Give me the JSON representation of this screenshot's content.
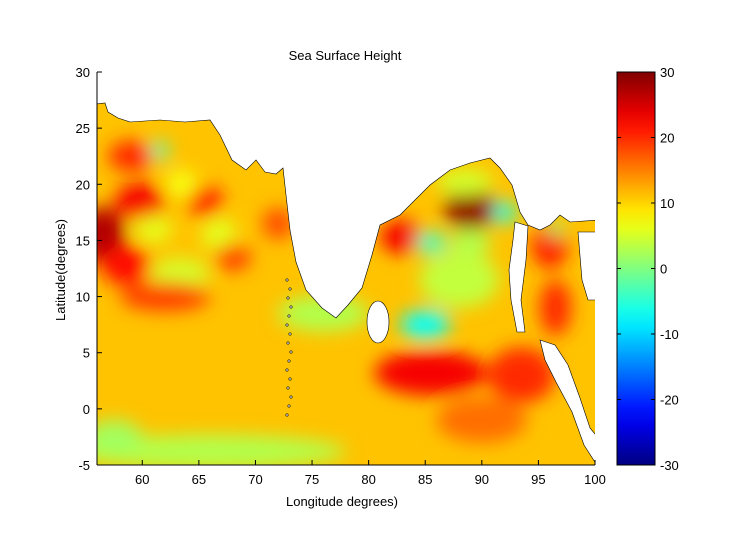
{
  "chart_data": {
    "type": "heatmap",
    "title": "Sea Surface Height",
    "xlabel": "Longitude degrees)",
    "ylabel": "Latitude(degrees)",
    "xlim": [
      56,
      100
    ],
    "ylim": [
      -5,
      30
    ],
    "xticks": [
      "60",
      "65",
      "70",
      "75",
      "80",
      "85",
      "90",
      "95",
      "100"
    ],
    "xtick_values": [
      60,
      65,
      70,
      75,
      80,
      85,
      90,
      95,
      100
    ],
    "yticks": [
      "30",
      "25",
      "20",
      "15",
      "10",
      "5",
      "0",
      "-5"
    ],
    "ytick_values": [
      30,
      25,
      20,
      15,
      10,
      5,
      0,
      -5
    ],
    "colorbar": {
      "range": [
        -30,
        30
      ],
      "ticks": [
        "30",
        "20",
        "10",
        "0",
        "-10",
        "-20",
        "-30"
      ],
      "tick_values": [
        30,
        20,
        10,
        0,
        -10,
        -20,
        -30
      ],
      "colormap": "jet"
    },
    "background_value": 11,
    "features": [
      {
        "lon": 56.5,
        "lat": 15.5,
        "value": 27,
        "rlon": 2.0,
        "rlat": 2.5
      },
      {
        "lon": 59.8,
        "lat": 18.5,
        "value": 23,
        "rlon": 2.2,
        "rlat": 1.6
      },
      {
        "lon": 61.5,
        "lat": 23.0,
        "value": -4,
        "rlon": 0.8,
        "rlat": 0.8
      },
      {
        "lon": 58.5,
        "lat": 12.8,
        "value": 22,
        "rlon": 2.2,
        "rlat": 1.8
      },
      {
        "lon": 59.0,
        "lat": 22.5,
        "value": 20,
        "rlon": 2.0,
        "rlat": 1.4
      },
      {
        "lon": 61.0,
        "lat": 16.0,
        "value": 6,
        "rlon": 1.6,
        "rlat": 1.2
      },
      {
        "lon": 63.3,
        "lat": 12.0,
        "value": 5,
        "rlon": 2.6,
        "rlat": 1.4
      },
      {
        "lon": 65.5,
        "lat": 18.5,
        "value": 21,
        "rlon": 1.6,
        "rlat": 1.4
      },
      {
        "lon": 62.0,
        "lat": 10.0,
        "value": 19,
        "rlon": 4.0,
        "rlat": 1.3
      },
      {
        "lon": 66.8,
        "lat": 15.5,
        "value": 6,
        "rlon": 1.5,
        "rlat": 1.6
      },
      {
        "lon": 63.5,
        "lat": 20.0,
        "value": 7,
        "rlon": 1.4,
        "rlat": 1.3
      },
      {
        "lon": 68.0,
        "lat": 13.5,
        "value": 19,
        "rlon": 1.6,
        "rlat": 1.2
      },
      {
        "lon": 66.0,
        "lat": -3.8,
        "value": 3,
        "rlon": 12.0,
        "rlat": 1.5
      },
      {
        "lon": 57.5,
        "lat": -2.5,
        "value": 2,
        "rlon": 2.5,
        "rlat": 1.5
      },
      {
        "lon": 76.0,
        "lat": 8.5,
        "value": 3,
        "rlon": 4.0,
        "rlat": 1.6
      },
      {
        "lon": 72.0,
        "lat": 16.5,
        "value": 18,
        "rlon": 1.4,
        "rlat": 1.4
      },
      {
        "lon": 89.0,
        "lat": 17.8,
        "value": 29,
        "rlon": 2.3,
        "rlat": 1.8
      },
      {
        "lon": 83.0,
        "lat": 15.3,
        "value": 23,
        "rlon": 2.0,
        "rlat": 1.5
      },
      {
        "lon": 85.5,
        "lat": 14.8,
        "value": -4,
        "rlon": 1.3,
        "rlat": 1.0
      },
      {
        "lon": 92.0,
        "lat": 17.5,
        "value": -6,
        "rlon": 1.0,
        "rlat": 1.0
      },
      {
        "lon": 89.0,
        "lat": 14.8,
        "value": 3,
        "rlon": 1.8,
        "rlat": 1.2
      },
      {
        "lon": 85.0,
        "lat": 7.5,
        "value": -7,
        "rlon": 2.2,
        "rlat": 1.3
      },
      {
        "lon": 88.0,
        "lat": 11.5,
        "value": 4,
        "rlon": 3.5,
        "rlat": 2.5
      },
      {
        "lon": 88.5,
        "lat": 20.2,
        "value": 5,
        "rlon": 2.5,
        "rlat": 1.2
      },
      {
        "lon": 85.5,
        "lat": 3.2,
        "value": 23,
        "rlon": 5.0,
        "rlat": 2.0
      },
      {
        "lon": 93.5,
        "lat": 3.0,
        "value": 20,
        "rlon": 3.0,
        "rlat": 2.5
      },
      {
        "lon": 90.0,
        "lat": -1.0,
        "value": 16,
        "rlon": 4.0,
        "rlat": 2.0
      },
      {
        "lon": 96.0,
        "lat": 14.5,
        "value": 21,
        "rlon": 1.6,
        "rlat": 2.0
      },
      {
        "lon": 96.5,
        "lat": 9.0,
        "value": 20,
        "rlon": 1.4,
        "rlat": 2.5
      },
      {
        "lon": 96.5,
        "lat": 16.0,
        "value": 0,
        "rlon": 0.6,
        "rlat": 0.8
      }
    ]
  }
}
